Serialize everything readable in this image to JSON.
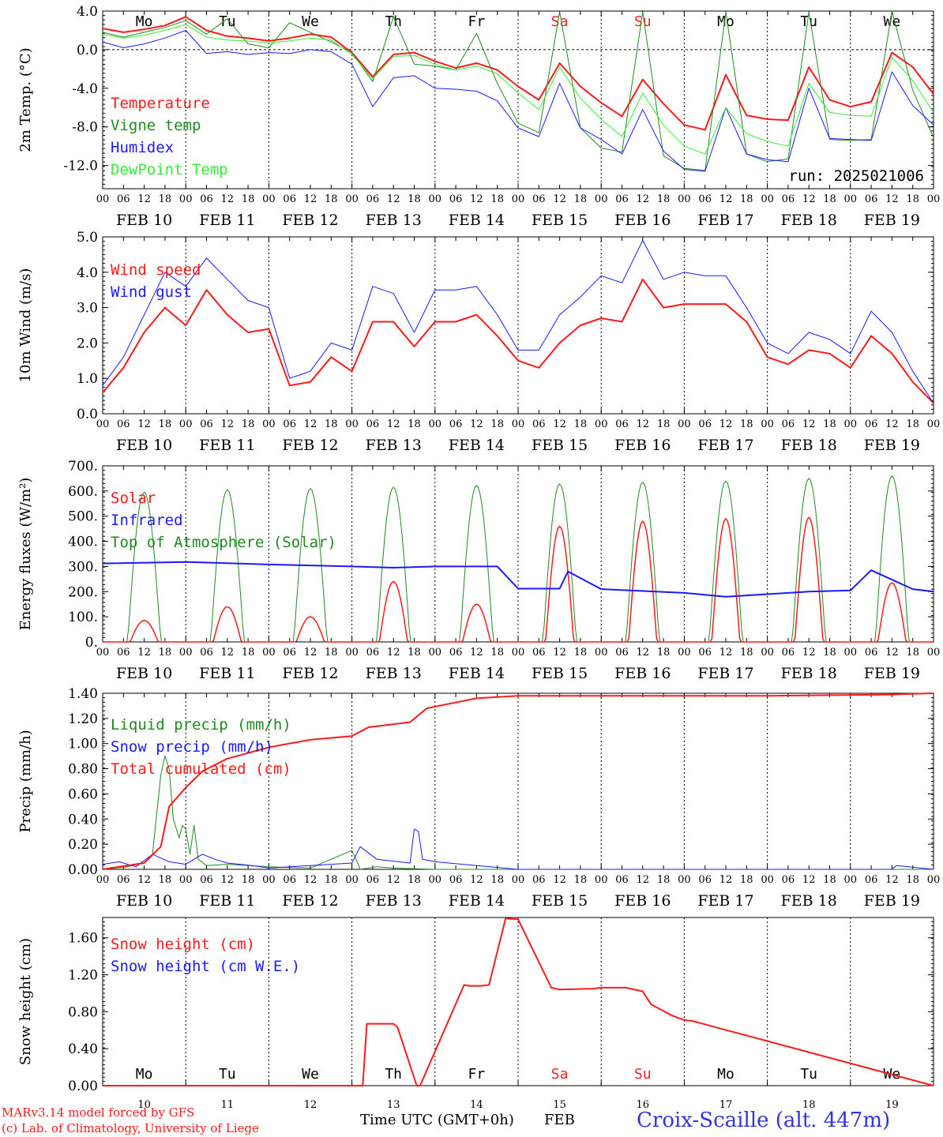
{
  "day_labels": [
    {
      "label": "Mo",
      "color": "#000000"
    },
    {
      "label": "Tu",
      "color": "#000000"
    },
    {
      "label": "We",
      "color": "#000000"
    },
    {
      "label": "Th",
      "color": "#000000"
    },
    {
      "label": "Fr",
      "color": "#000000"
    },
    {
      "label": "Sa",
      "color": "#ff2020"
    },
    {
      "label": "Su",
      "color": "#ff2020"
    },
    {
      "label": "Mo",
      "color": "#000000"
    },
    {
      "label": "Tu",
      "color": "#000000"
    },
    {
      "label": "We",
      "color": "#000000"
    }
  ],
  "hour_ticks": [
    "00",
    "06",
    "12",
    "18"
  ],
  "date_labels": [
    "FEB 10",
    "FEB 11",
    "FEB 12",
    "FEB 13",
    "FEB 14",
    "FEB 15",
    "FEB 16",
    "FEB 17",
    "FEB 18",
    "FEB 19"
  ],
  "bottom_days": [
    "10",
    "11",
    "12",
    "13",
    "14",
    "15",
    "16",
    "17",
    "18",
    "19"
  ],
  "footer": {
    "credit1": "MARv3.14 model forced by GFS",
    "credit2": "(c) Lab. of Climatology, University of Liege",
    "xlabel": "Time UTC (GMT+0h)",
    "month": "FEB",
    "station": "Croix-Scaille (alt. 447m)"
  },
  "colors": {
    "red": "#ff1a1a",
    "green": "#1f8a1f",
    "blue": "#1a1aff",
    "light_green": "#33ee33",
    "accent": "#3333dd"
  },
  "chart_data": [
    {
      "type": "line",
      "ylabel": "2m Temp. (°C)",
      "ylim": [
        -14.4,
        4.0
      ],
      "yticks": [
        "4.0",
        "0.0",
        "-4.0",
        "-8.0",
        "-12.0"
      ],
      "ytick_values": [
        4,
        0,
        -4,
        -8,
        -12
      ],
      "dashed_at": [
        0
      ],
      "annotation": "run: 2025021006",
      "x_days": [
        0,
        0.25,
        0.5,
        0.75,
        1,
        1.25,
        1.5,
        1.75,
        2,
        2.25,
        2.5,
        2.75,
        3,
        3.25,
        3.5,
        3.75,
        4,
        4.25,
        4.5,
        4.75,
        5,
        5.25,
        5.5,
        5.75,
        6,
        6.25,
        6.5,
        6.75,
        7,
        7.25,
        7.5,
        7.75,
        8,
        8.25,
        8.5,
        8.75,
        9,
        9.25,
        9.5,
        9.75,
        10
      ],
      "series": [
        {
          "name": "Temperature",
          "color": "#ff1a1a",
          "width": 2,
          "values": [
            2.2,
            1.8,
            2.1,
            2.5,
            3.4,
            2.0,
            1.4,
            1.2,
            0.9,
            1.2,
            1.6,
            1.3,
            -0.3,
            -2.8,
            -0.5,
            -0.3,
            -1.2,
            -1.9,
            -1.4,
            -2.1,
            -3.8,
            -5.2,
            -1.4,
            -3.8,
            -5.5,
            -6.9,
            -3.1,
            -5.6,
            -7.8,
            -8.3,
            -2.6,
            -6.8,
            -7.2,
            -7.3,
            -1.8,
            -5.2,
            -5.9,
            -5.4,
            -0.3,
            -1.8,
            -4.6
          ]
        },
        {
          "name": "Vigne temp",
          "color": "#1f8a1f",
          "width": 1,
          "values": [
            1.8,
            1.3,
            1.8,
            2.3,
            3.0,
            1.6,
            3.2,
            0.6,
            0.2,
            2.8,
            1.8,
            0.8,
            -0.3,
            -3.3,
            3.4,
            -1.5,
            -1.7,
            -2.1,
            1.7,
            -3.5,
            -7.6,
            -8.6,
            3.9,
            -8.1,
            -10.2,
            -10.6,
            3.9,
            -11.0,
            -12.3,
            -12.5,
            3.9,
            -10.8,
            -11.6,
            -11.3,
            3.9,
            -9.3,
            -9.4,
            -9.3,
            4.0,
            -4.2,
            -9.1
          ]
        },
        {
          "name": "Humidex",
          "color": "#1a1aff",
          "width": 1,
          "values": [
            0.8,
            0.2,
            0.6,
            1.2,
            2.0,
            -0.4,
            -0.2,
            -0.5,
            -0.3,
            -0.4,
            0.0,
            -0.2,
            -1.5,
            -5.9,
            -2.9,
            -2.7,
            -4.0,
            -4.1,
            -4.3,
            -5.3,
            -8.1,
            -9.0,
            -3.5,
            -8.1,
            -9.3,
            -10.8,
            -6.2,
            -10.5,
            -12.4,
            -12.6,
            -6.0,
            -10.8,
            -11.4,
            -11.6,
            -4.0,
            -9.2,
            -9.3,
            -9.4,
            -2.3,
            -5.8,
            -7.8
          ]
        },
        {
          "name": "DewPoint Temp",
          "color": "#33ee33",
          "width": 1,
          "values": [
            1.6,
            1.2,
            1.5,
            2.0,
            2.6,
            1.3,
            1.0,
            0.9,
            0.7,
            0.9,
            1.2,
            1.0,
            -0.5,
            -3.0,
            -0.7,
            -0.6,
            -1.5,
            -2.1,
            -1.7,
            -2.5,
            -4.5,
            -6.2,
            -1.8,
            -5.0,
            -7.2,
            -9.0,
            -4.5,
            -7.8,
            -10.0,
            -10.8,
            -6.0,
            -8.7,
            -9.5,
            -10.0,
            -3.5,
            -6.5,
            -6.8,
            -6.9,
            -0.8,
            -3.2,
            -6.5
          ]
        }
      ]
    },
    {
      "type": "line",
      "ylabel": "10m Wind (m/s)",
      "ylim": [
        0,
        5.0
      ],
      "yticks": [
        "5.0",
        "4.0",
        "3.0",
        "2.0",
        "1.0",
        "0.0"
      ],
      "ytick_values": [
        5,
        4,
        3,
        2,
        1,
        0
      ],
      "dashed_at": [
        5
      ],
      "x_days": [
        0,
        0.25,
        0.5,
        0.75,
        1,
        1.25,
        1.5,
        1.75,
        2,
        2.25,
        2.5,
        2.75,
        3,
        3.25,
        3.5,
        3.75,
        4,
        4.25,
        4.5,
        4.75,
        5,
        5.25,
        5.5,
        5.75,
        6,
        6.25,
        6.5,
        6.75,
        7,
        7.25,
        7.5,
        7.75,
        8,
        8.25,
        8.5,
        8.75,
        9,
        9.25,
        9.5,
        9.75,
        10
      ],
      "series": [
        {
          "name": "Wind speed",
          "color": "#ff1a1a",
          "width": 2,
          "values": [
            0.6,
            1.3,
            2.3,
            3.0,
            2.5,
            3.5,
            2.8,
            2.3,
            2.4,
            0.8,
            0.9,
            1.6,
            1.2,
            2.6,
            2.6,
            1.9,
            2.6,
            2.6,
            2.8,
            2.2,
            1.5,
            1.3,
            2.0,
            2.5,
            2.7,
            2.6,
            3.8,
            3.0,
            3.1,
            3.1,
            3.1,
            2.6,
            1.6,
            1.4,
            1.8,
            1.7,
            1.3,
            2.2,
            1.7,
            0.9,
            0.3
          ]
        },
        {
          "name": "Wind gust",
          "color": "#1a1aff",
          "width": 1,
          "values": [
            0.8,
            1.6,
            2.8,
            4.0,
            3.6,
            4.4,
            3.8,
            3.2,
            3.0,
            1.0,
            1.2,
            2.0,
            1.8,
            3.6,
            3.4,
            2.3,
            3.5,
            3.5,
            3.6,
            2.8,
            1.8,
            1.8,
            2.8,
            3.3,
            3.9,
            3.7,
            4.9,
            3.8,
            4.0,
            3.9,
            3.9,
            3.0,
            2.0,
            1.7,
            2.3,
            2.1,
            1.7,
            2.9,
            2.3,
            1.2,
            0.3
          ]
        }
      ]
    },
    {
      "type": "line",
      "ylabel": "Energy fluxes (W/m²)",
      "ylim": [
        0,
        700
      ],
      "yticks": [
        "700.",
        "600.",
        "500.",
        "400.",
        "300.",
        "200.",
        "100.",
        "0."
      ],
      "ytick_values": [
        700,
        600,
        500,
        400,
        300,
        200,
        100,
        0
      ],
      "dashed_at": [],
      "top_of_atmosphere_peaks": [
        595,
        605,
        610,
        615,
        622,
        628,
        635,
        640,
        650,
        660
      ],
      "solar_peaks": [
        85,
        140,
        100,
        240,
        150,
        460,
        480,
        490,
        495,
        235
      ],
      "infrared": {
        "x_days": [
          0,
          1,
          2,
          3,
          3.5,
          4,
          4.75,
          5,
          5.5,
          5.6,
          6,
          7,
          7.5,
          8,
          8.5,
          9,
          9.25,
          9.75,
          10
        ],
        "values": [
          312,
          318,
          308,
          300,
          295,
          300,
          300,
          212,
          212,
          280,
          210,
          195,
          180,
          190,
          200,
          205,
          285,
          210,
          200
        ]
      },
      "series": [
        {
          "name": "Solar",
          "color": "#ff1a1a",
          "width": 1
        },
        {
          "name": "Infrared",
          "color": "#1a1aff",
          "width": 2
        },
        {
          "name": "Top of Atmosphere (Solar)",
          "color": "#1f8a1f",
          "width": 1
        }
      ]
    },
    {
      "type": "line",
      "ylabel": "Precip (mm/h)",
      "ylim": [
        0,
        1.4
      ],
      "yticks": [
        "1.40",
        "1.20",
        "1.00",
        "0.80",
        "0.60",
        "0.40",
        "0.20",
        "0.00"
      ],
      "ytick_values": [
        1.4,
        1.2,
        1.0,
        0.8,
        0.6,
        0.4,
        0.2,
        0.0
      ],
      "dashed_at": [
        1.4
      ],
      "series": [
        {
          "name": "Liquid precip (mm/h)",
          "color": "#1f8a1f",
          "width": 1,
          "x_days": [
            0,
            0.3,
            0.5,
            0.6,
            0.7,
            0.75,
            0.8,
            0.85,
            0.92,
            0.96,
            1.0,
            1.05,
            1.1,
            1.15,
            1.25,
            1.5,
            2.0,
            2.5,
            3.0,
            3.05,
            3.1,
            3.3,
            3.5,
            4.0,
            10.0
          ],
          "values": [
            0.0,
            0.02,
            0.05,
            0.12,
            0.75,
            0.9,
            0.8,
            0.4,
            0.25,
            0.35,
            0.32,
            0.12,
            0.35,
            0.08,
            0.03,
            0.04,
            0.02,
            0.01,
            0.15,
            0.08,
            0.0,
            0.02,
            0.01,
            0.0,
            0.0
          ]
        },
        {
          "name": "Snow precip (mm/h)",
          "color": "#1a1aff",
          "width": 1,
          "x_days": [
            0,
            0.2,
            0.4,
            0.6,
            0.8,
            1.0,
            1.2,
            1.35,
            1.5,
            1.8,
            2.0,
            2.5,
            3.0,
            3.1,
            3.3,
            3.7,
            3.75,
            3.8,
            3.85,
            4.0,
            4.5,
            5.0,
            9.5,
            9.55,
            10.0
          ],
          "values": [
            0.04,
            0.06,
            0.02,
            0.12,
            0.06,
            0.04,
            0.12,
            0.08,
            0.05,
            0.03,
            0.01,
            0.03,
            0.05,
            0.18,
            0.08,
            0.05,
            0.32,
            0.3,
            0.08,
            0.06,
            0.03,
            0.0,
            0.0,
            0.03,
            0.0
          ]
        },
        {
          "name": "Total cumulated (cm)",
          "color": "#ff1a1a",
          "width": 2,
          "x_days": [
            0,
            0.5,
            0.7,
            0.8,
            1.0,
            1.2,
            1.5,
            2.0,
            2.5,
            3.0,
            3.2,
            3.7,
            3.9,
            4.2,
            4.5,
            5.0,
            6.0,
            8.0,
            9.5,
            10.0
          ],
          "values": [
            0.0,
            0.05,
            0.18,
            0.5,
            0.65,
            0.78,
            0.88,
            0.97,
            1.03,
            1.06,
            1.13,
            1.17,
            1.28,
            1.32,
            1.36,
            1.38,
            1.38,
            1.38,
            1.39,
            1.4
          ]
        }
      ]
    },
    {
      "type": "line",
      "ylabel": "Snow height (cm)",
      "ylim": [
        0,
        1.82
      ],
      "yticks": [
        "1.60",
        "1.20",
        "0.80",
        "0.40",
        "0.00"
      ],
      "ytick_values": [
        1.6,
        1.2,
        0.8,
        0.4,
        0.0
      ],
      "dashed_at": [],
      "series": [
        {
          "name": "Snow height (cm)",
          "color": "#ff1a1a",
          "width": 2,
          "x_days": [
            0,
            3.13,
            3.18,
            3.5,
            3.55,
            3.78,
            3.82,
            4.35,
            4.42,
            4.55,
            4.65,
            4.85,
            5.0,
            5.4,
            5.5,
            5.9,
            6.0,
            6.3,
            6.5,
            6.6,
            6.85,
            7.0,
            7.1,
            10.0
          ],
          "values": [
            0,
            0,
            0.67,
            0.67,
            0.63,
            0,
            0,
            1.09,
            1.08,
            1.08,
            1.09,
            1.81,
            1.8,
            1.06,
            1.04,
            1.05,
            1.06,
            1.06,
            1.02,
            0.88,
            0.76,
            0.71,
            0.7,
            0
          ]
        },
        {
          "name": "Snow height (cm W.E.)",
          "color": "#1a1aff",
          "width": 1
        }
      ]
    }
  ]
}
